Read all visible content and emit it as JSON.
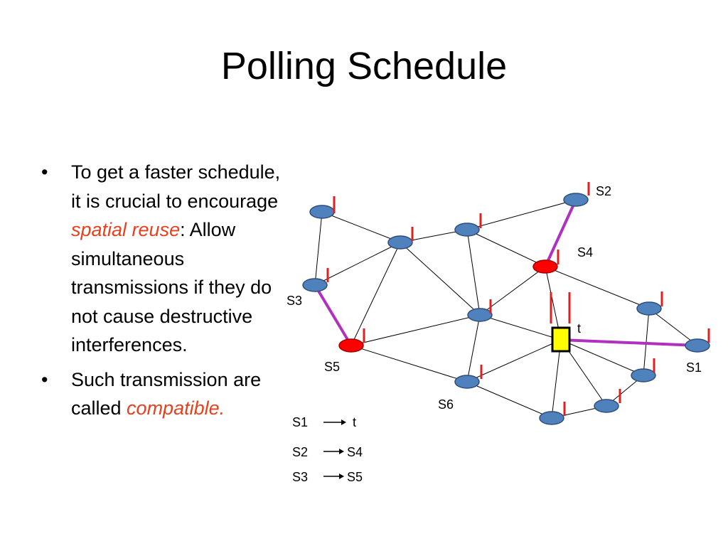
{
  "slide": {
    "title": "Polling Schedule",
    "bullets": [
      {
        "parts": [
          {
            "text": "To get a faster schedule, it is crucial to encourage "
          },
          {
            "text": "spatial reuse",
            "emphasis": true
          },
          {
            "text": ": Allow simultaneous transmissions if they do not cause destructive interferences."
          }
        ]
      },
      {
        "parts": [
          {
            "text": "Such transmission are called "
          },
          {
            "text": "compatible.",
            "emphasis": true
          }
        ]
      }
    ]
  },
  "colors": {
    "node_fill": "#4f81bd",
    "node_stroke": "#2e4d7a",
    "active_node_fill": "#ff0000",
    "target_fill": "#ffff00",
    "active_link": "#b030c0",
    "flag": "#e02020",
    "emphasis": "#e8401c"
  },
  "diagram": {
    "node_labels": {
      "S1": "S1",
      "S2": "S2",
      "S3": "S3",
      "S4": "S4",
      "S5": "S5",
      "S6": "S6",
      "t": "t"
    },
    "legend": [
      {
        "from": "S1",
        "to": "t"
      },
      {
        "from": "S2",
        "to": "S4"
      },
      {
        "from": "S3",
        "to": "S5"
      }
    ]
  }
}
